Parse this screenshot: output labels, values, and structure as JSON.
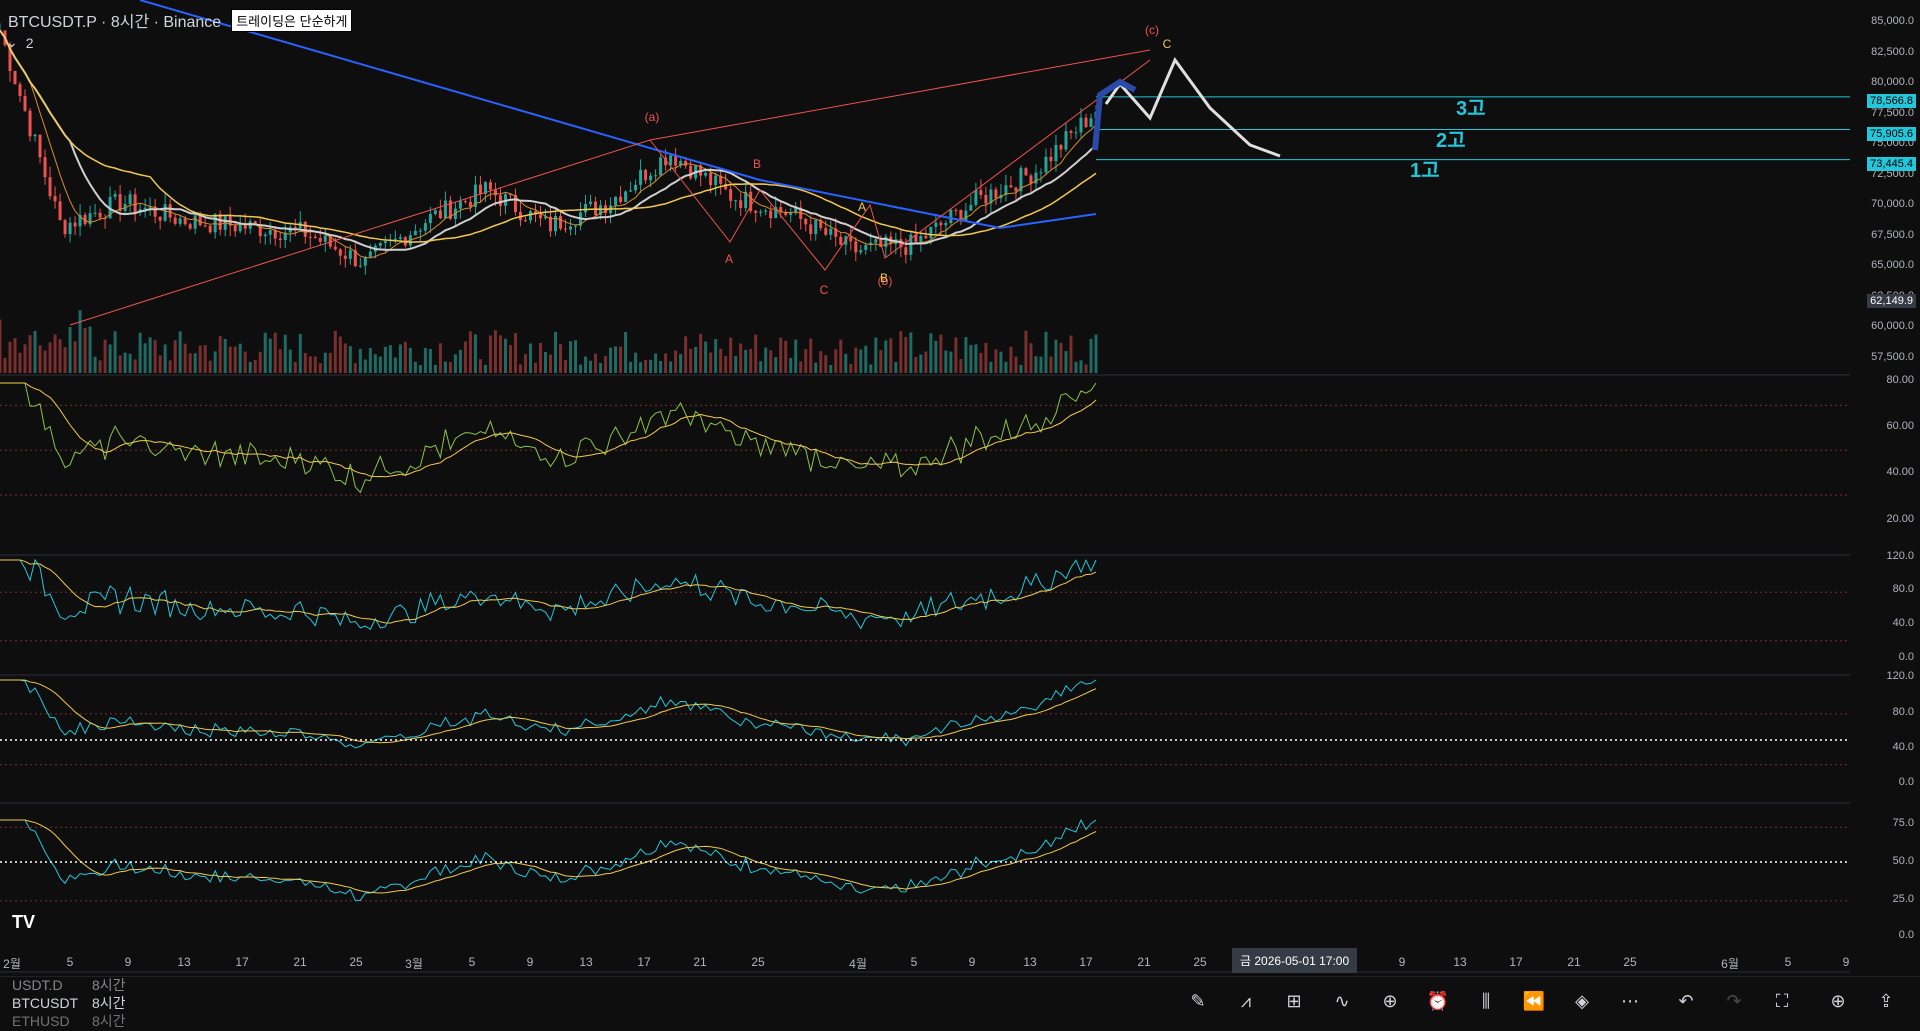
{
  "header": {
    "symbol_line": "BTCUSDT.P · 8시간 · Binance",
    "badge": "트레이딩은 단순하게",
    "collapse_count": "2"
  },
  "price_axis": {
    "ticks": [
      "85,000.0",
      "82,500.0",
      "80,000.0",
      "77,500.0",
      "75,000.0",
      "72,500.0",
      "70,000.0",
      "67,500.0",
      "65,000.0",
      "62,500.0",
      "60,000.0",
      "57,500.0"
    ],
    "tags": [
      {
        "text": "78,566.8",
        "color": "#26c6da"
      },
      {
        "text": "75,905.6",
        "color": "#26c6da"
      },
      {
        "text": "73,445.4",
        "color": "#26c6da"
      },
      {
        "text": "62,149.9",
        "color": "#363a45"
      }
    ]
  },
  "pane1_axis": [
    "80.00",
    "60.00",
    "40.00",
    "20.00"
  ],
  "pane2_axis": [
    "120.0",
    "80.0",
    "40.0",
    "0.0"
  ],
  "pane3_axis": [
    "120.0",
    "80.0",
    "40.0",
    "0.0"
  ],
  "pane4_axis": [
    "75.0",
    "50.0",
    "25.0",
    "0.0"
  ],
  "x_axis": [
    "2월",
    "5",
    "9",
    "13",
    "17",
    "21",
    "25",
    "3월",
    "5",
    "9",
    "13",
    "17",
    "21",
    "25",
    "4월",
    "5",
    "9",
    "13",
    "17",
    "21",
    "25",
    "9",
    "13",
    "17",
    "21",
    "25",
    "6월",
    "5",
    "9"
  ],
  "crosshair_date": "금 2026-05-01   17:00",
  "target_labels": [
    "3고",
    "2고",
    "1고"
  ],
  "wave_labels": {
    "a": "(a)",
    "b": "(b)",
    "c": "(c)",
    "A1": "A",
    "B1": "B",
    "C1": "C",
    "A2": "A",
    "B2": "B",
    "C2": "C"
  },
  "watchlist": [
    {
      "sym": "USDT.D",
      "tf": "8시간"
    },
    {
      "sym": "BTCUSDT",
      "tf": "8시간"
    },
    {
      "sym": "ETHUSD",
      "tf": "8시간"
    }
  ],
  "logo": "TV",
  "colors": {
    "up": "#26a69a",
    "down": "#ef5350",
    "accent": "#26c6da",
    "ma_blue": "#2962ff",
    "ma_yellow": "#f2c94c"
  },
  "chart_data": {
    "type": "line",
    "title": "BTCUSDT.P · 8시간 · Binance",
    "x": [
      "2월 1",
      "2월 5",
      "2월 9",
      "2월 13",
      "2월 17",
      "2월 21",
      "2월 25",
      "3월 1",
      "3월 5",
      "3월 9",
      "3월 13",
      "3월 17",
      "3월 21",
      "3월 25",
      "4월 1",
      "4월 5",
      "4월 9",
      "4월 13",
      "4월 17"
    ],
    "series": [
      {
        "values": [
          84000,
          68000,
          70000,
          68500,
          68000,
          67500,
          65000,
          68500,
          71000,
          68000,
          70000,
          74000,
          70500,
          69000,
          66000,
          66500,
          70000,
          72500,
          77500
        ]
      }
    ],
    "ylim": [
      57500,
      85000
    ],
    "levels": [
      78566.8,
      75905.6,
      73445.4
    ]
  }
}
